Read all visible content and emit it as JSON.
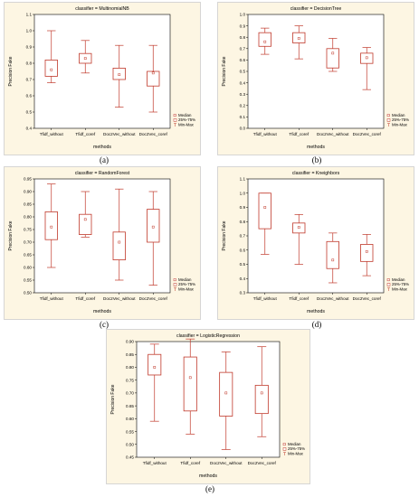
{
  "colors": {
    "box": "#c0392b",
    "background": "#fdf6e3",
    "frame": "#cccccc"
  },
  "legend": {
    "median": "Median",
    "iqr": "25%-75%",
    "range": "Min-Max"
  },
  "captions": [
    "(a)",
    "(b)",
    "(c)",
    "(d)",
    "(e)"
  ],
  "chart_data": [
    {
      "type": "boxplot",
      "title": "classifier = MultinomialNB",
      "xlabel": "methods",
      "ylabel": "Precision Fake",
      "categories": [
        "Tfidf_without",
        "Tfidf_coref",
        "Doc2Vec_without",
        "Doc2Vec_coref"
      ],
      "ylim": [
        0.4,
        1.1
      ],
      "yticks": [
        0.4,
        0.5,
        0.6,
        0.7,
        0.8,
        0.9,
        1.0,
        1.1
      ],
      "yticklabels": [
        "0.4",
        "0.5",
        "0.6",
        "0.7",
        "0.8",
        "0.9",
        "1.0",
        "1.1"
      ],
      "series": [
        {
          "category": "Tfidf_without",
          "min": 0.68,
          "q1": 0.72,
          "median": 0.76,
          "q3": 0.82,
          "max": 1.0
        },
        {
          "category": "Tfidf_coref",
          "min": 0.74,
          "q1": 0.8,
          "median": 0.83,
          "q3": 0.86,
          "max": 0.94
        },
        {
          "category": "Doc2Vec_without",
          "min": 0.53,
          "q1": 0.7,
          "median": 0.73,
          "q3": 0.77,
          "max": 0.91
        },
        {
          "category": "Doc2Vec_coref",
          "min": 0.5,
          "q1": 0.66,
          "median": 0.74,
          "q3": 0.75,
          "max": 0.91
        }
      ]
    },
    {
      "type": "boxplot",
      "title": "classifier = DecisionTree",
      "xlabel": "methods",
      "ylabel": "Precision Fake",
      "categories": [
        "Tfidf_without",
        "Tfidf_coref",
        "Doc2Vec_without",
        "Doc2Vec_coref"
      ],
      "ylim": [
        0.0,
        1.0
      ],
      "yticks": [
        0.0,
        0.1,
        0.2,
        0.3,
        0.4,
        0.5,
        0.6,
        0.7,
        0.8,
        0.9,
        1.0
      ],
      "yticklabels": [
        "0.0",
        "0.1",
        "0.2",
        "0.3",
        "0.4",
        "0.5",
        "0.6",
        "0.7",
        "0.8",
        "0.9",
        "1.0"
      ],
      "series": [
        {
          "category": "Tfidf_without",
          "min": 0.65,
          "q1": 0.72,
          "median": 0.76,
          "q3": 0.84,
          "max": 0.88
        },
        {
          "category": "Tfidf_coref",
          "min": 0.61,
          "q1": 0.75,
          "median": 0.79,
          "q3": 0.84,
          "max": 0.9
        },
        {
          "category": "Doc2Vec_without",
          "min": 0.5,
          "q1": 0.53,
          "median": 0.66,
          "q3": 0.7,
          "max": 0.79
        },
        {
          "category": "Doc2Vec_coref",
          "min": 0.34,
          "q1": 0.57,
          "median": 0.62,
          "q3": 0.66,
          "max": 0.71
        }
      ]
    },
    {
      "type": "boxplot",
      "title": "classifier = RandomForest",
      "xlabel": "methods",
      "ylabel": "Precision Fake",
      "categories": [
        "Tfidf_without",
        "Tfidf_coref",
        "Doc2Vec_without",
        "Doc2Vec_coref"
      ],
      "ylim": [
        0.5,
        0.95
      ],
      "yticks": [
        0.5,
        0.55,
        0.6,
        0.65,
        0.7,
        0.75,
        0.8,
        0.85,
        0.9,
        0.95
      ],
      "yticklabels": [
        "0.50",
        "0.55",
        "0.60",
        "0.65",
        "0.70",
        "0.75",
        "0.80",
        "0.85",
        "0.90",
        "0.95"
      ],
      "series": [
        {
          "category": "Tfidf_without",
          "min": 0.6,
          "q1": 0.71,
          "median": 0.76,
          "q3": 0.82,
          "max": 0.93
        },
        {
          "category": "Tfidf_coref",
          "min": 0.72,
          "q1": 0.73,
          "median": 0.79,
          "q3": 0.81,
          "max": 0.9
        },
        {
          "category": "Doc2Vec_without",
          "min": 0.55,
          "q1": 0.63,
          "median": 0.7,
          "q3": 0.74,
          "max": 0.91
        },
        {
          "category": "Doc2Vec_coref",
          "min": 0.53,
          "q1": 0.7,
          "median": 0.76,
          "q3": 0.83,
          "max": 0.9
        }
      ]
    },
    {
      "type": "boxplot",
      "title": "classifier = Kneighbors",
      "xlabel": "methods",
      "ylabel": "Precision Fake",
      "categories": [
        "Tfidf_without",
        "Tfidf_coref",
        "Doc2Vec_without",
        "Doc2Vec_coref"
      ],
      "ylim": [
        0.3,
        1.1
      ],
      "yticks": [
        0.3,
        0.4,
        0.5,
        0.6,
        0.7,
        0.8,
        0.9,
        1.0,
        1.1
      ],
      "yticklabels": [
        "0.3",
        "0.4",
        "0.5",
        "0.6",
        "0.7",
        "0.8",
        "0.9",
        "1.0",
        "1.1"
      ],
      "series": [
        {
          "category": "Tfidf_without",
          "min": 0.57,
          "q1": 0.75,
          "median": 0.9,
          "q3": 1.0,
          "max": 1.0
        },
        {
          "category": "Tfidf_coref",
          "min": 0.5,
          "q1": 0.72,
          "median": 0.76,
          "q3": 0.79,
          "max": 0.85
        },
        {
          "category": "Doc2Vec_without",
          "min": 0.37,
          "q1": 0.47,
          "median": 0.53,
          "q3": 0.66,
          "max": 0.72
        },
        {
          "category": "Doc2Vec_coref",
          "min": 0.42,
          "q1": 0.52,
          "median": 0.59,
          "q3": 0.64,
          "max": 0.71
        }
      ]
    },
    {
      "type": "boxplot",
      "title": "classifier = LogisticRegression",
      "xlabel": "methods",
      "ylabel": "Precision Fake",
      "categories": [
        "Tfidf_without",
        "Tfidf_coref",
        "Doc2Vec_without",
        "Doc2Vec_coref"
      ],
      "ylim": [
        0.45,
        0.9
      ],
      "yticks": [
        0.45,
        0.5,
        0.55,
        0.6,
        0.65,
        0.7,
        0.75,
        0.8,
        0.85,
        0.9
      ],
      "yticklabels": [
        "0.45",
        "0.50",
        "0.55",
        "0.60",
        "0.65",
        "0.70",
        "0.75",
        "0.80",
        "0.85",
        "0.90"
      ],
      "series": [
        {
          "category": "Tfidf_without",
          "min": 0.59,
          "q1": 0.77,
          "median": 0.8,
          "q3": 0.85,
          "max": 0.89
        },
        {
          "category": "Tfidf_coref",
          "min": 0.54,
          "q1": 0.63,
          "median": 0.76,
          "q3": 0.84,
          "max": 0.91
        },
        {
          "category": "Doc2Vec_without",
          "min": 0.48,
          "q1": 0.61,
          "median": 0.7,
          "q3": 0.78,
          "max": 0.86
        },
        {
          "category": "Doc2Vec_coref",
          "min": 0.53,
          "q1": 0.62,
          "median": 0.7,
          "q3": 0.73,
          "max": 0.88
        }
      ]
    }
  ]
}
